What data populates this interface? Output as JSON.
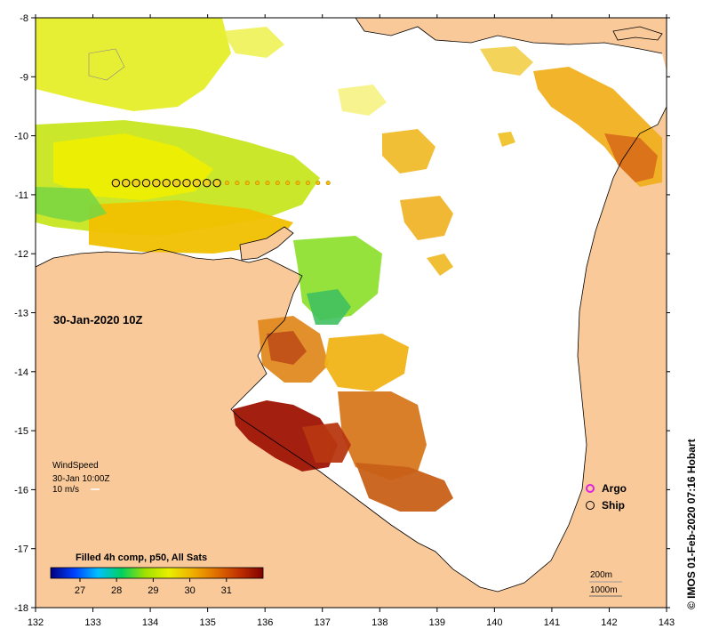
{
  "map": {
    "x_ticks": [
      "132",
      "133",
      "134",
      "135",
      "136",
      "137",
      "138",
      "139",
      "140",
      "141",
      "142",
      "143"
    ],
    "y_ticks": [
      "-8",
      "-9",
      "-10",
      "-11",
      "-12",
      "-13",
      "-14",
      "-15",
      "-16",
      "-17",
      "-18"
    ],
    "colors": {
      "land": "#f9c99a",
      "water_nodata": "#ffffff",
      "frame": "#000000"
    }
  },
  "annotations": {
    "date": "30-Jan-2020 10Z",
    "wind_title": "WindSpeed",
    "wind_time": "30-Jan 10:00Z",
    "wind_scale": "10 m/s",
    "scale_depth": "200m",
    "scale_distance": "1000m",
    "credit": "© IMOS 01-Feb-2020 07:16 Hobart"
  },
  "legend": {
    "argo_label": "Argo",
    "ship_label": "Ship",
    "argo_color": "#e020e0",
    "ship_color": "#000000"
  },
  "colorbar": {
    "title": "Filled 4h comp, p50, All Sats",
    "ticks": [
      "27",
      "28",
      "29",
      "30",
      "31"
    ],
    "range": [
      26.2,
      32.0
    ],
    "tick_values": [
      27,
      28,
      29,
      30,
      31
    ],
    "stops": [
      "#000080",
      "#0040ff",
      "#00c0ff",
      "#00d060",
      "#a0e000",
      "#e8f000",
      "#f0b000",
      "#e07000",
      "#c03000",
      "#800000"
    ]
  },
  "ship_track": {
    "lon_start": 133.4,
    "lon_end": 137.1,
    "lat": -10.8,
    "points_ringed": 11,
    "points_total": 22
  }
}
